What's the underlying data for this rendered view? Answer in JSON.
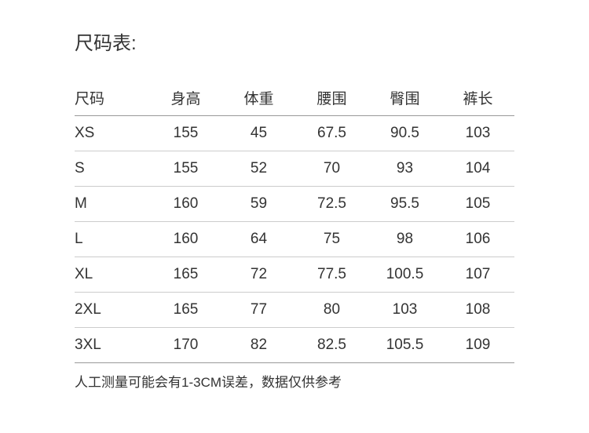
{
  "page": {
    "title": "尺码表:",
    "footer_note": "人工测量可能会有1-3CM误差，数据仅供参考"
  },
  "table": {
    "headers": [
      "尺码",
      "身高",
      "体重",
      "腰围",
      "臀围",
      "裤长"
    ],
    "rows": [
      [
        "XS",
        "155",
        "45",
        "67.5",
        "90.5",
        "103"
      ],
      [
        "S",
        "155",
        "52",
        "70",
        "93",
        "104"
      ],
      [
        "M",
        "160",
        "59",
        "72.5",
        "95.5",
        "105"
      ],
      [
        "L",
        "160",
        "64",
        "75",
        "98",
        "106"
      ],
      [
        "XL",
        "165",
        "72",
        "77.5",
        "100.5",
        "107"
      ],
      [
        "2XL",
        "165",
        "77",
        "80",
        "103",
        "108"
      ],
      [
        "3XL",
        "170",
        "82",
        "82.5",
        "105.5",
        "109"
      ]
    ]
  },
  "colors": {
    "background": "#ffffff",
    "text": "#333333",
    "strong_line": "#999999",
    "light_line": "#cccccc"
  }
}
